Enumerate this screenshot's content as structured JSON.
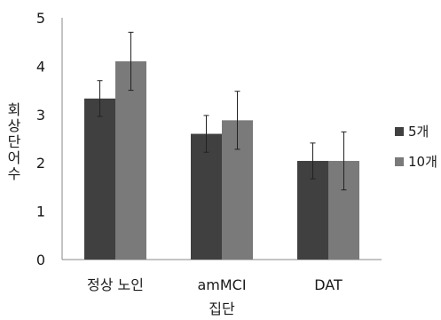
{
  "chart_data": {
    "type": "bar",
    "categories": [
      "정상 노인",
      "amMCI",
      "DAT"
    ],
    "series": [
      {
        "name": "5개",
        "color": "#404040",
        "values": [
          3.33,
          2.6,
          2.04
        ],
        "error": [
          0.37,
          0.38,
          0.37
        ]
      },
      {
        "name": "10개",
        "color": "#7a7a7a",
        "values": [
          4.1,
          2.88,
          2.04
        ],
        "error": [
          0.6,
          0.6,
          0.6
        ]
      }
    ],
    "ylim": [
      0,
      5
    ],
    "yticks": [
      "0",
      "1",
      "2",
      "3",
      "4",
      "5"
    ],
    "xlabel": "집단",
    "ylabel": "회상단어수",
    "grid": false,
    "legend_position": "right"
  }
}
